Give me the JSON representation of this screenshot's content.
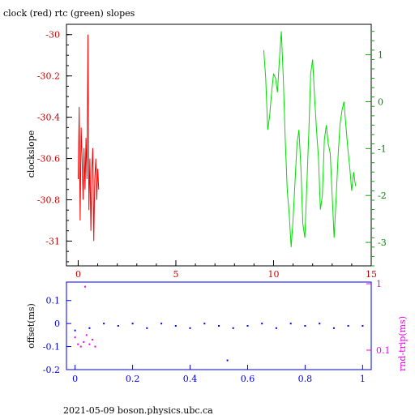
{
  "chart_data": [
    {
      "type": "line",
      "title": "clock (red) rtc (green) slopes",
      "ylabel": "clockslope",
      "xlim": [
        -0.6,
        15
      ],
      "ylim_left": [
        -31.12,
        -29.95
      ],
      "ylim_right": [
        -3.5,
        1.65
      ],
      "x_ticks": [
        "0",
        "5",
        "10",
        "15"
      ],
      "x_tick_values": [
        0,
        5,
        10,
        15
      ],
      "y_ticks_left": [
        "-30",
        "-30.2",
        "-30.4",
        "-30.6",
        "-30.8",
        "-31"
      ],
      "y_tick_values_left": [
        -30,
        -30.2,
        -30.4,
        -30.6,
        -30.8,
        -31
      ],
      "y_ticks_right": [
        "1",
        "0",
        "-1",
        "-2",
        "-3"
      ],
      "y_tick_values_right": [
        1,
        0,
        -1,
        -2,
        -3
      ],
      "series": [
        {
          "color": "#ff0000",
          "axis": "left",
          "x": [
            0.0,
            0.05,
            0.1,
            0.15,
            0.2,
            0.25,
            0.3,
            0.35,
            0.4,
            0.45,
            0.5,
            0.55,
            0.6,
            0.65,
            0.7,
            0.75,
            0.8,
            0.85,
            0.9,
            0.95,
            1.0,
            1.05
          ],
          "y": [
            -30.7,
            -30.35,
            -30.9,
            -30.45,
            -30.6,
            -30.8,
            -30.55,
            -30.75,
            -30.5,
            -30.7,
            -30.0,
            -30.85,
            -30.6,
            -30.95,
            -30.65,
            -30.55,
            -31.0,
            -30.7,
            -30.6,
            -30.8,
            -30.65,
            -30.75
          ]
        },
        {
          "color": "#00dd00",
          "axis": "right",
          "x": [
            9.5,
            9.6,
            9.7,
            9.8,
            9.9,
            10.0,
            10.1,
            10.2,
            10.3,
            10.4,
            10.5,
            10.6,
            10.7,
            10.8,
            10.9,
            11.0,
            11.1,
            11.2,
            11.3,
            11.4,
            11.5,
            11.6,
            11.7,
            11.8,
            11.9,
            12.0,
            12.1,
            12.2,
            12.3,
            12.4,
            12.5,
            12.6,
            12.7,
            12.8,
            12.9,
            13.0,
            13.1,
            13.2,
            13.3,
            13.4,
            13.5,
            13.6,
            13.7,
            13.8,
            13.9,
            14.0,
            14.1,
            14.2
          ],
          "y": [
            1.1,
            0.5,
            -0.6,
            -0.3,
            0.2,
            0.6,
            0.5,
            0.2,
            0.9,
            1.5,
            0.5,
            -0.8,
            -1.9,
            -2.4,
            -3.1,
            -2.5,
            -1.7,
            -0.9,
            -0.6,
            -1.4,
            -2.6,
            -2.9,
            -1.8,
            -0.7,
            0.6,
            0.9,
            0.1,
            -0.6,
            -1.2,
            -2.3,
            -2.0,
            -0.8,
            -0.5,
            -0.9,
            -1.1,
            -2.0,
            -2.9,
            -2.1,
            -1.2,
            -0.5,
            -0.2,
            0.0,
            -0.5,
            -1.0,
            -1.4,
            -1.9,
            -1.5,
            -1.8
          ]
        }
      ]
    },
    {
      "type": "scatter",
      "ylabel": "offset(ms)",
      "ylabel_right": "rnd-trip(ms)",
      "xlim": [
        -0.03,
        1.03
      ],
      "ylim": [
        -0.2,
        0.18
      ],
      "x_ticks": [
        "0",
        "0.2",
        "0.4",
        "0.6",
        "0.8",
        "1"
      ],
      "x_tick_values": [
        0,
        0.2,
        0.4,
        0.6,
        0.8,
        1
      ],
      "y_ticks": [
        "0.1",
        "0",
        "-0.1",
        "-0.2"
      ],
      "y_tick_values": [
        0.1,
        0,
        -0.1,
        -0.2
      ],
      "y_ticks_right": [
        "1",
        "0.1"
      ],
      "series": [
        {
          "color": "#0000ee",
          "description_visible": false,
          "x": [
            0.0,
            0.05,
            0.1,
            0.15,
            0.2,
            0.25,
            0.3,
            0.35,
            0.4,
            0.45,
            0.5,
            0.53,
            0.55,
            0.6,
            0.65,
            0.7,
            0.75,
            0.8,
            0.85,
            0.9,
            0.95,
            1.0
          ],
          "y": [
            -0.03,
            -0.02,
            0.0,
            -0.01,
            0.0,
            -0.02,
            0.0,
            -0.01,
            -0.02,
            0.0,
            -0.01,
            -0.16,
            -0.02,
            -0.01,
            0.0,
            -0.02,
            0.0,
            -0.01,
            0.0,
            -0.02,
            -0.01,
            -0.01
          ]
        },
        {
          "color": "#ee00ee",
          "x": [
            0.0,
            0.01,
            0.02,
            0.03,
            0.035,
            0.04,
            0.05,
            0.06,
            0.07
          ],
          "y": [
            -0.06,
            -0.09,
            -0.1,
            -0.08,
            0.16,
            -0.05,
            -0.09,
            -0.07,
            -0.1
          ]
        }
      ]
    }
  ],
  "footer": "2021-05-09 boson.physics.ubc.ca"
}
